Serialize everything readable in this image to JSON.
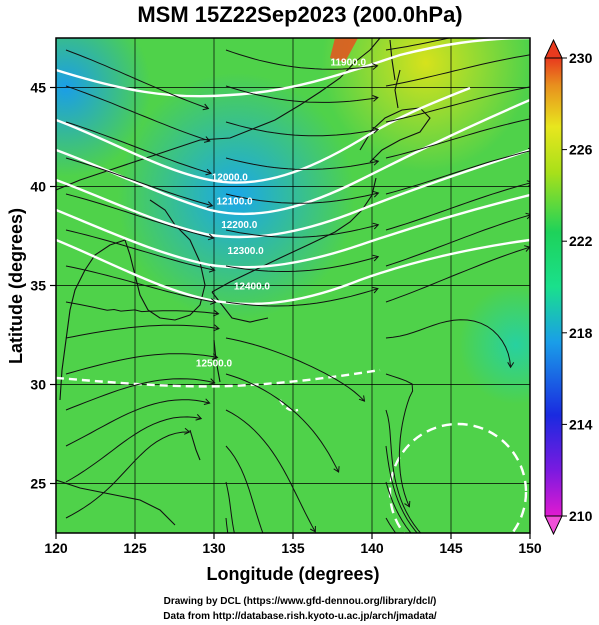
{
  "figure": {
    "title": "MSM 15Z22Sep2023 (200.0hPa)",
    "x_axis_label": "Longitude (degrees)",
    "y_axis_label": "Latitude  (degrees)",
    "x_ticks": [
      "120",
      "125",
      "130",
      "135",
      "140",
      "145",
      "150"
    ],
    "y_ticks": [
      "25",
      "30",
      "35",
      "40",
      "45"
    ],
    "colorbar_ticks": [
      "210",
      "214",
      "218",
      "222",
      "226",
      "230"
    ],
    "credit_line_1": "Drawing by DCL (https://www.gfd-dennou.org/library/dcl/)",
    "credit_line_2": "Data from http://database.rish.kyoto-u.ac.jp/arch/jmadata/"
  },
  "map": {
    "lon_range": [
      120,
      150
    ],
    "lat_range": [
      22.5,
      47.5
    ],
    "contour_labels": [
      {
        "text": "12000.0",
        "lon": 131.0,
        "lat": 40.3
      },
      {
        "text": "12100.0",
        "lon": 131.3,
        "lat": 39.1
      },
      {
        "text": "12200.0",
        "lon": 131.6,
        "lat": 37.9
      },
      {
        "text": "12300.0",
        "lon": 132.0,
        "lat": 36.6
      },
      {
        "text": "12400.0",
        "lon": 132.4,
        "lat": 34.8
      },
      {
        "text": "12500.0",
        "lon": 130.0,
        "lat": 30.9
      },
      {
        "text": "11900.0",
        "lon": 138.5,
        "lat": 46.1
      }
    ],
    "colors": {
      "cold": "#1e7fe0",
      "mid": "#1ed25a",
      "warm": "#e8e61e",
      "hot": "#e8521e"
    }
  },
  "colorbar": {
    "range": [
      210,
      230
    ]
  }
}
